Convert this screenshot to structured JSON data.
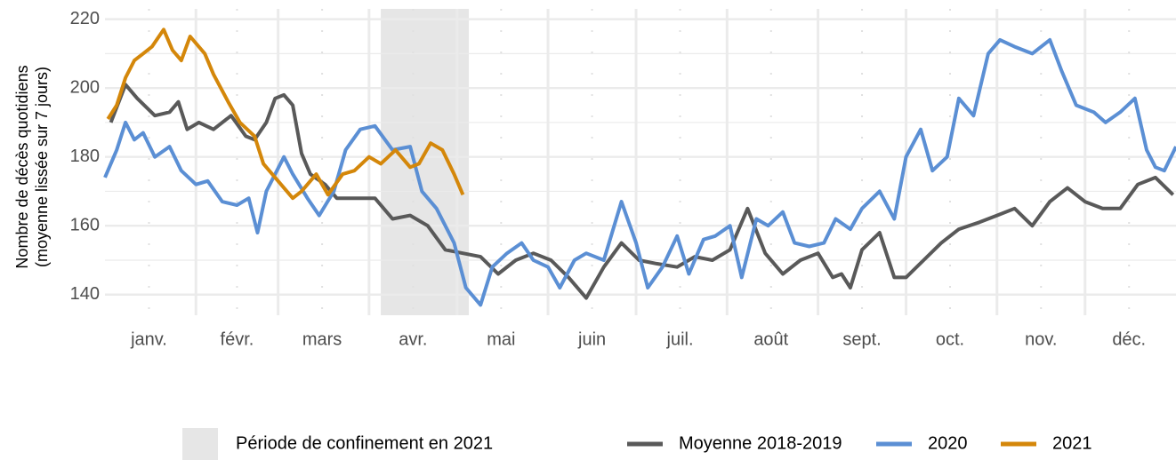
{
  "chart_data": {
    "type": "line",
    "ylabel": [
      "Nombre de décès quotidiens",
      "(moyenne lissée sur 7 jours)"
    ],
    "xlim": [
      1,
      366
    ],
    "ylim": [
      134,
      223
    ],
    "xticks": [
      {
        "value": 16,
        "label": "janv."
      },
      {
        "value": 46,
        "label": "févr."
      },
      {
        "value": 75,
        "label": "mars"
      },
      {
        "value": 106,
        "label": "avr."
      },
      {
        "value": 136,
        "label": "mai"
      },
      {
        "value": 167,
        "label": "juin"
      },
      {
        "value": 197,
        "label": "juil."
      },
      {
        "value": 228,
        "label": "août"
      },
      {
        "value": 259,
        "label": "sept."
      },
      {
        "value": 289,
        "label": "oct."
      },
      {
        "value": 320,
        "label": "nov."
      },
      {
        "value": 350,
        "label": "déc."
      }
    ],
    "xgrid": [
      32,
      60,
      91,
      121,
      152,
      182,
      213,
      244,
      274,
      305,
      335
    ],
    "yticks": [
      140,
      160,
      180,
      200,
      220
    ],
    "grid": true,
    "shade": {
      "name": "Période de confinement en 2021",
      "range": [
        95,
        125
      ],
      "color": "#e6e6e6"
    },
    "series": [
      {
        "name": "Moyenne 2018-2019",
        "color": "#595959",
        "x": [
          3,
          8,
          12,
          18,
          23,
          26,
          29,
          33,
          38,
          44,
          49,
          52,
          56,
          59,
          62,
          65,
          68,
          71,
          76,
          80,
          86,
          93,
          99,
          105,
          111,
          117,
          123,
          129,
          135,
          141,
          147,
          153,
          159,
          165,
          171,
          177,
          183,
          189,
          196,
          202,
          208,
          214,
          220,
          226,
          232,
          238,
          244,
          249,
          252,
          255,
          259,
          265,
          270,
          274,
          280,
          286,
          292,
          299,
          305,
          311,
          317,
          323,
          329,
          335,
          341,
          347,
          353,
          359,
          365
        ],
        "values": [
          190,
          201,
          197,
          192,
          193,
          196,
          188,
          190,
          188,
          192,
          186,
          185,
          190,
          197,
          198,
          195,
          181,
          175,
          172,
          168,
          168,
          168,
          162,
          163,
          160,
          153,
          152,
          151,
          146,
          150,
          152,
          150,
          145,
          139,
          148,
          155,
          150,
          149,
          148,
          151,
          150,
          153,
          165,
          152,
          146,
          150,
          152,
          145,
          146,
          142,
          153,
          158,
          145,
          145,
          150,
          155,
          159,
          161,
          163,
          165,
          160,
          167,
          171,
          167,
          165,
          165,
          172,
          174,
          169
        ]
      },
      {
        "name": "2020",
        "color": "#5b8fd4",
        "x": [
          1,
          5,
          8,
          11,
          14,
          18,
          23,
          27,
          32,
          36,
          41,
          46,
          50,
          53,
          56,
          62,
          65,
          70,
          74,
          79,
          83,
          88,
          93,
          99,
          105,
          109,
          114,
          120,
          124,
          129,
          133,
          138,
          143,
          147,
          152,
          156,
          161,
          165,
          171,
          177,
          182,
          186,
          191,
          196,
          200,
          205,
          209,
          214,
          218,
          223,
          227,
          232,
          236,
          241,
          246,
          250,
          255,
          259,
          265,
          270,
          274,
          279,
          283,
          288,
          292,
          297,
          302,
          306,
          311,
          317,
          323,
          327,
          332,
          338,
          342,
          347,
          352,
          356,
          359,
          362,
          366
        ],
        "values": [
          174,
          182,
          190,
          185,
          187,
          180,
          183,
          176,
          172,
          173,
          167,
          166,
          168,
          158,
          170,
          180,
          175,
          168,
          163,
          170,
          182,
          188,
          189,
          182,
          183,
          170,
          165,
          155,
          142,
          137,
          148,
          152,
          155,
          150,
          148,
          142,
          150,
          152,
          150,
          167,
          155,
          142,
          148,
          157,
          146,
          156,
          157,
          160,
          145,
          162,
          160,
          164,
          155,
          154,
          155,
          162,
          159,
          165,
          170,
          162,
          180,
          188,
          176,
          180,
          197,
          192,
          210,
          214,
          212,
          210,
          214,
          205,
          195,
          193,
          190,
          193,
          197,
          182,
          177,
          176,
          183
        ]
      },
      {
        "name": "2021",
        "color": "#d4870a",
        "x": [
          2,
          5,
          8,
          11,
          14,
          17,
          21,
          24,
          27,
          30,
          35,
          38,
          43,
          47,
          52,
          55,
          58,
          61,
          65,
          68,
          73,
          77,
          82,
          86,
          91,
          95,
          100,
          105,
          108,
          112,
          116,
          120,
          123
        ],
        "values": [
          191,
          195,
          203,
          208,
          210,
          212,
          217,
          211,
          208,
          215,
          210,
          204,
          196,
          190,
          186,
          178,
          175,
          172,
          168,
          170,
          175,
          169,
          175,
          176,
          180,
          178,
          182,
          177,
          178,
          184,
          182,
          175,
          169
        ]
      }
    ]
  }
}
